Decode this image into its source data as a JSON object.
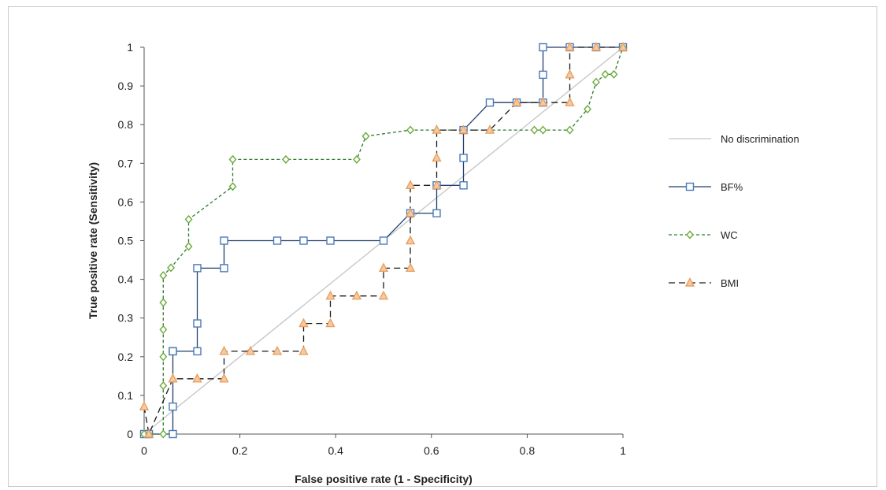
{
  "chart_data": {
    "type": "line",
    "xlabel": "False positive rate (1 -  Specificity)",
    "ylabel": "True positive rate (Sensitivity)",
    "xlim": [
      0,
      1
    ],
    "ylim": [
      0,
      1
    ],
    "xticks": [
      "0",
      "0.2",
      "0.4",
      "0.6",
      "0.8",
      "1"
    ],
    "xtick_values": [
      0,
      0.2,
      0.4,
      0.6,
      0.8,
      1
    ],
    "yticks": [
      "0",
      "0.1",
      "0.2",
      "0.3",
      "0.4",
      "0.5",
      "0.6",
      "0.7",
      "0.8",
      "0.9",
      "1"
    ],
    "ytick_values": [
      0,
      0.1,
      0.2,
      0.3,
      0.4,
      0.5,
      0.6,
      0.7,
      0.8,
      0.9,
      1
    ],
    "grid": false,
    "legend_position": "right",
    "series": [
      {
        "name": "No discrimination",
        "color": "#c8c8c8",
        "dash": "solid",
        "marker": "none",
        "x": [
          0,
          1
        ],
        "y": [
          0,
          1
        ]
      },
      {
        "name": "BF%",
        "color": "#1f3f6e",
        "marker_color": "#4a7ab8",
        "dash": "solid",
        "marker": "square",
        "x": [
          0,
          0.01,
          0.06,
          0.06,
          0.06,
          0.06,
          0.111,
          0.111,
          0.111,
          0.167,
          0.167,
          0.278,
          0.333,
          0.389,
          0.5,
          0.556,
          0.611,
          0.611,
          0.667,
          0.667,
          0.667,
          0.722,
          0.778,
          0.833,
          0.833,
          0.833,
          0.889,
          0.944,
          1
        ],
        "y": [
          0,
          0,
          0,
          0.071,
          0.214,
          0.214,
          0.214,
          0.286,
          0.429,
          0.429,
          0.5,
          0.5,
          0.5,
          0.5,
          0.5,
          0.571,
          0.571,
          0.643,
          0.643,
          0.714,
          0.786,
          0.857,
          0.857,
          0.857,
          0.929,
          1,
          1,
          1,
          1
        ]
      },
      {
        "name": "WC",
        "color": "#2e7a2e",
        "marker_color": "#6aaa3a",
        "dash": "4,3",
        "marker": "diamond",
        "x": [
          0,
          0.01,
          0.04,
          0.04,
          0.04,
          0.04,
          0.04,
          0.04,
          0.056,
          0.093,
          0.093,
          0.185,
          0.185,
          0.296,
          0.444,
          0.463,
          0.556,
          0.815,
          0.833,
          0.889,
          0.926,
          0.944,
          0.963,
          0.981,
          1
        ],
        "y": [
          0,
          0,
          0,
          0.125,
          0.2,
          0.27,
          0.34,
          0.41,
          0.43,
          0.485,
          0.555,
          0.64,
          0.71,
          0.71,
          0.71,
          0.77,
          0.786,
          0.786,
          0.786,
          0.786,
          0.84,
          0.91,
          0.93,
          0.93,
          1
        ]
      },
      {
        "name": "BMI",
        "color": "#1a1a1a",
        "marker_color": "#e8a060",
        "dash": "8,5",
        "marker": "triangle",
        "x": [
          0,
          0.01,
          0.06,
          0.111,
          0.167,
          0.167,
          0.222,
          0.278,
          0.333,
          0.333,
          0.389,
          0.389,
          0.444,
          0.5,
          0.5,
          0.556,
          0.556,
          0.556,
          0.556,
          0.611,
          0.611,
          0.611,
          0.667,
          0.722,
          0.778,
          0.833,
          0.889,
          0.889,
          0.889,
          0.944,
          1
        ],
        "y": [
          0.071,
          0,
          0.143,
          0.143,
          0.143,
          0.214,
          0.214,
          0.214,
          0.214,
          0.286,
          0.286,
          0.357,
          0.357,
          0.357,
          0.429,
          0.429,
          0.5,
          0.571,
          0.643,
          0.643,
          0.714,
          0.786,
          0.786,
          0.786,
          0.857,
          0.857,
          0.857,
          0.929,
          1,
          1,
          1
        ]
      }
    ]
  }
}
